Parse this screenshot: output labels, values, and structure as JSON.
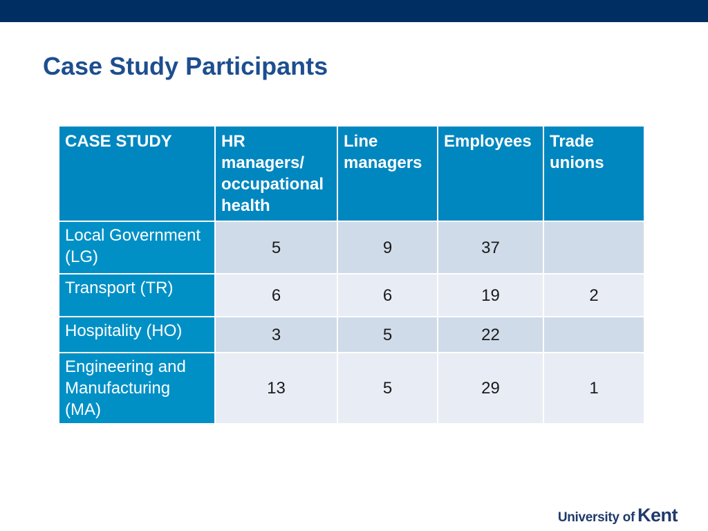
{
  "colors": {
    "top_bar": "#002d62",
    "title": "#1d4e8f",
    "header_bg": "#0087c0",
    "row_label_bg": "#0090c6",
    "row_odd_bg": "#cfdbe9",
    "row_even_bg": "#e8edf5",
    "logo": "#1f3a6b"
  },
  "slide": {
    "title": "Case Study Participants"
  },
  "table": {
    "headers": [
      "CASE STUDY",
      "HR managers/ occupational health",
      "Line managers",
      "Employees",
      "Trade unions"
    ],
    "rows": [
      {
        "label": "Local Government (LG)",
        "values": [
          "5",
          "9",
          "37",
          ""
        ]
      },
      {
        "label": "Transport (TR)",
        "values": [
          "6",
          "6",
          "19",
          "2"
        ]
      },
      {
        "label": "Hospitality (HO)",
        "values": [
          "3",
          "5",
          "22",
          ""
        ]
      },
      {
        "label": "Engineering and Manufacturing (MA)",
        "values": [
          "13",
          "5",
          "29",
          "1"
        ]
      }
    ]
  },
  "logo": {
    "prefix": "University of",
    "name": "Kent"
  }
}
